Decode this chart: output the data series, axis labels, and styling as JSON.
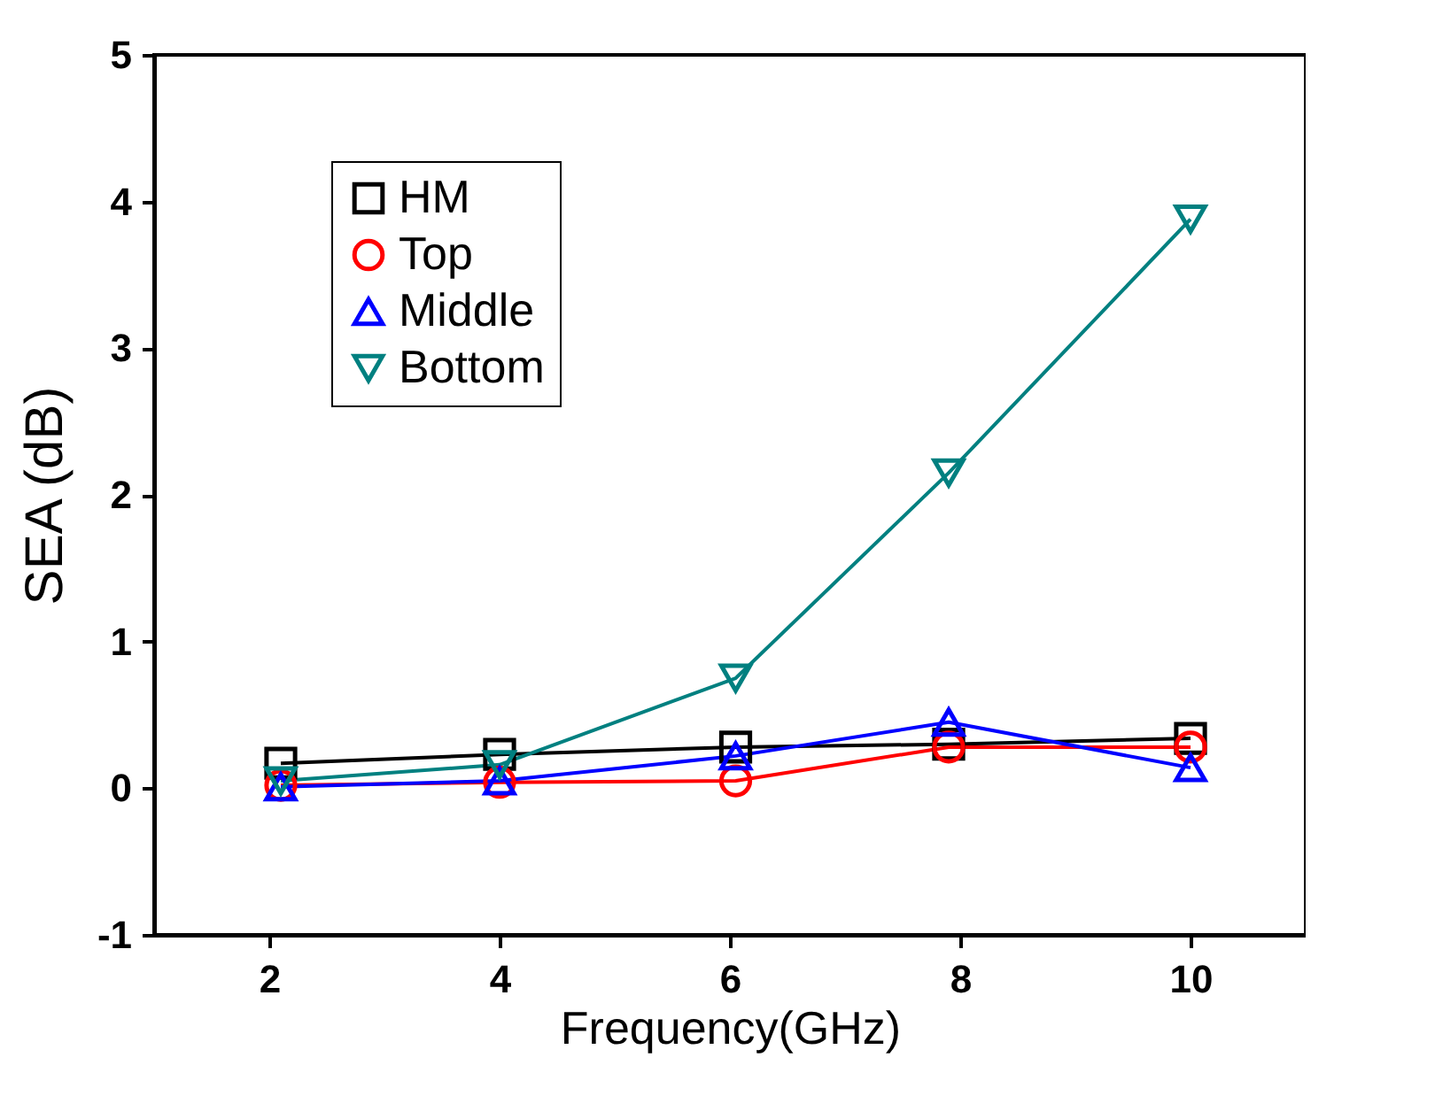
{
  "chart_data": {
    "type": "line",
    "xlabel": "Frequency(GHz)",
    "ylabel": "SEA (dB)",
    "x": [
      2.1,
      4,
      6.05,
      7.9,
      10
    ],
    "series": [
      {
        "name": "HM",
        "color": "#000000",
        "marker": "square",
        "values": [
          0.17,
          0.23,
          0.28,
          0.3,
          0.34
        ]
      },
      {
        "name": "Top",
        "color": "#ff0000",
        "marker": "circle",
        "values": [
          0.02,
          0.04,
          0.05,
          0.28,
          0.28
        ]
      },
      {
        "name": "Middle",
        "color": "#0000ff",
        "marker": "triangle",
        "values": [
          0.01,
          0.05,
          0.22,
          0.45,
          0.14
        ]
      },
      {
        "name": "Bottom",
        "color": "#008080",
        "marker": "triangle-down",
        "values": [
          0.05,
          0.16,
          0.75,
          2.15,
          3.88
        ]
      }
    ],
    "xlim": [
      1,
      11
    ],
    "xticks": [
      2,
      4,
      6,
      8,
      10
    ],
    "ylim": [
      -1,
      5
    ],
    "yticks": [
      -1,
      0,
      1,
      2,
      3,
      4,
      5
    ],
    "grid": false,
    "legend": "top left",
    "line_style": "solid"
  }
}
